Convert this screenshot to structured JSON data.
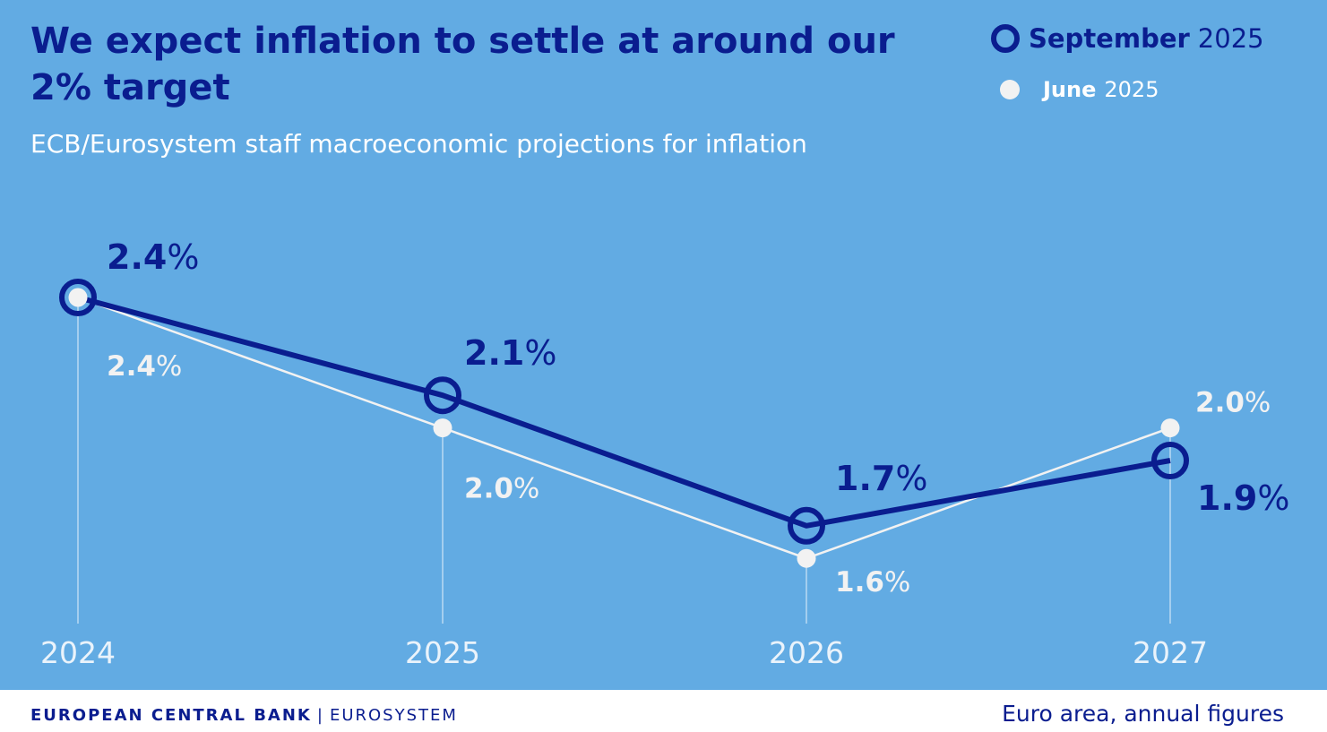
{
  "header": {
    "title": "We expect inflation to settle at around our 2% target",
    "subtitle": "ECB/Eurosystem staff macroeconomic projections for inflation"
  },
  "legend": {
    "september": {
      "month": "September",
      "year": "2025"
    },
    "june": {
      "month": "June",
      "year": "2025"
    }
  },
  "footer": {
    "bank": "EUROPEAN CENTRAL BANK",
    "divider": "|",
    "system": "EUROSYSTEM",
    "note": "Euro area, annual figures"
  },
  "colors": {
    "background": "#62abe3",
    "september": "#0a1d8f",
    "june": "#f2f2f2",
    "year_label": "#eaf3fb"
  },
  "chart_data": {
    "type": "line",
    "title": "We expect inflation to settle at around our 2% target",
    "subtitle": "ECB/Eurosystem staff macroeconomic projections for inflation",
    "categories": [
      "2024",
      "2025",
      "2026",
      "2027"
    ],
    "xlabel": "",
    "ylabel": "",
    "grid": false,
    "legend_position": "top-right",
    "series": [
      {
        "name": "September 2025",
        "values": [
          2.4,
          2.1,
          1.7,
          1.9
        ],
        "labels": [
          "2.4%",
          "2.1%",
          "1.7%",
          "1.9%"
        ]
      },
      {
        "name": "June 2025",
        "values": [
          2.4,
          2.0,
          1.6,
          2.0
        ],
        "labels": [
          "2.4%",
          "2.0%",
          "1.6%",
          "2.0%"
        ]
      }
    ]
  }
}
